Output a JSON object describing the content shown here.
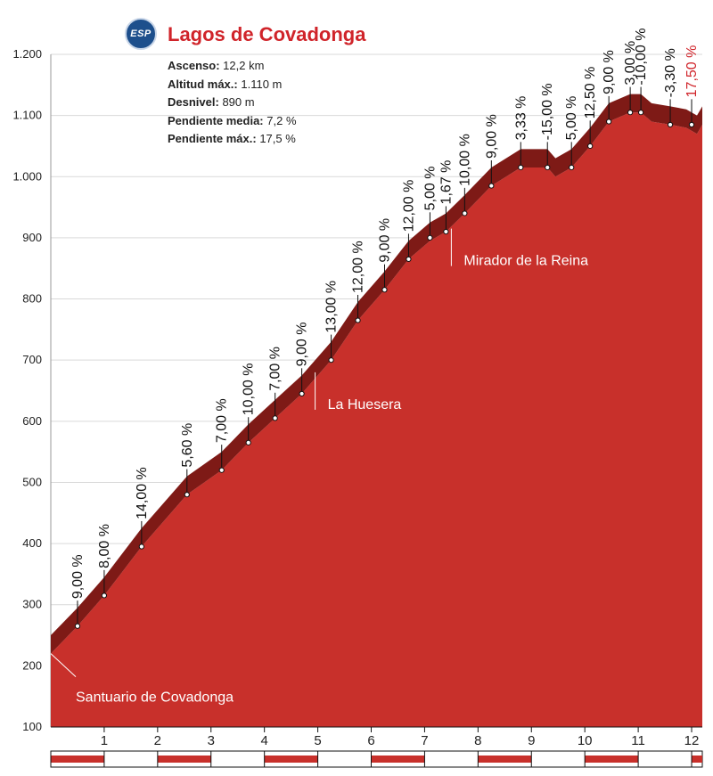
{
  "header": {
    "logo_text": "ESP",
    "title": "Lagos de Covadonga",
    "stats": [
      {
        "label": "Ascenso:",
        "value": "12,2 km"
      },
      {
        "label": "Altitud máx.:",
        "value": "1.110 m"
      },
      {
        "label": "Desnivel:",
        "value": "890 m"
      },
      {
        "label": "Pendiente media:",
        "value": "7,2 %"
      },
      {
        "label": "Pendiente máx.:",
        "value": "17,5 %"
      }
    ]
  },
  "colors": {
    "fill": "#c8302b",
    "band": "#7e1a16",
    "grid": "#d9d9d9",
    "highlight_text": "#d0242a"
  },
  "chart_data": {
    "type": "area",
    "xlim": [
      0,
      12.2
    ],
    "ylim": [
      100,
      1200
    ],
    "x_ticks": [
      1,
      2,
      3,
      4,
      5,
      6,
      7,
      8,
      9,
      10,
      11,
      12
    ],
    "x_tick_labels": [
      "1",
      "2",
      "3",
      "4",
      "5",
      "6",
      "7",
      "8",
      "9",
      "10",
      "11",
      "12"
    ],
    "y_ticks": [
      100,
      200,
      300,
      400,
      500,
      600,
      700,
      800,
      900,
      1000,
      1100,
      1200
    ],
    "y_tick_labels": [
      "100",
      "200",
      "300",
      "400",
      "500",
      "600",
      "700",
      "800",
      "900",
      "1.000",
      "1.100",
      "1.200"
    ],
    "profile": [
      {
        "x": 0.0,
        "y": 220
      },
      {
        "x": 0.5,
        "y": 265
      },
      {
        "x": 1.0,
        "y": 315
      },
      {
        "x": 1.7,
        "y": 395
      },
      {
        "x": 2.55,
        "y": 480
      },
      {
        "x": 3.2,
        "y": 520
      },
      {
        "x": 3.7,
        "y": 565
      },
      {
        "x": 4.2,
        "y": 605
      },
      {
        "x": 4.7,
        "y": 645
      },
      {
        "x": 5.25,
        "y": 700
      },
      {
        "x": 5.75,
        "y": 765
      },
      {
        "x": 6.25,
        "y": 815
      },
      {
        "x": 6.7,
        "y": 865
      },
      {
        "x": 7.1,
        "y": 895
      },
      {
        "x": 7.4,
        "y": 910
      },
      {
        "x": 7.75,
        "y": 940
      },
      {
        "x": 8.25,
        "y": 985
      },
      {
        "x": 8.8,
        "y": 1015
      },
      {
        "x": 9.3,
        "y": 1015
      },
      {
        "x": 9.45,
        "y": 1000
      },
      {
        "x": 9.75,
        "y": 1015
      },
      {
        "x": 10.1,
        "y": 1050
      },
      {
        "x": 10.45,
        "y": 1090
      },
      {
        "x": 10.85,
        "y": 1105
      },
      {
        "x": 11.05,
        "y": 1105
      },
      {
        "x": 11.25,
        "y": 1090
      },
      {
        "x": 11.6,
        "y": 1085
      },
      {
        "x": 11.9,
        "y": 1080
      },
      {
        "x": 12.1,
        "y": 1070
      },
      {
        "x": 12.2,
        "y": 1085
      }
    ],
    "band_thickness": 30,
    "gradients": [
      {
        "x": 0.5,
        "y": 265,
        "label": "9,00 %"
      },
      {
        "x": 1.0,
        "y": 315,
        "label": "8,00 %"
      },
      {
        "x": 1.7,
        "y": 395,
        "label": "14,00 %"
      },
      {
        "x": 2.55,
        "y": 480,
        "label": "5,60 %"
      },
      {
        "x": 3.2,
        "y": 520,
        "label": "7,00 %"
      },
      {
        "x": 3.7,
        "y": 565,
        "label": "10,00 %"
      },
      {
        "x": 4.2,
        "y": 605,
        "label": "7,00 %"
      },
      {
        "x": 4.7,
        "y": 645,
        "label": "9,00 %"
      },
      {
        "x": 5.25,
        "y": 700,
        "label": "13,00 %"
      },
      {
        "x": 5.75,
        "y": 765,
        "label": "12,00 %"
      },
      {
        "x": 6.25,
        "y": 815,
        "label": "9,00 %"
      },
      {
        "x": 6.7,
        "y": 865,
        "label": "12,00 %"
      },
      {
        "x": 7.1,
        "y": 900,
        "label": "5,00 %"
      },
      {
        "x": 7.4,
        "y": 910,
        "label": "1,67 %"
      },
      {
        "x": 7.75,
        "y": 940,
        "label": "10,00 %"
      },
      {
        "x": 8.25,
        "y": 985,
        "label": "9,00 %"
      },
      {
        "x": 8.8,
        "y": 1015,
        "label": "3,33 %"
      },
      {
        "x": 9.3,
        "y": 1015,
        "label": "-15,00 %"
      },
      {
        "x": 9.75,
        "y": 1015,
        "label": "5,00 %"
      },
      {
        "x": 10.1,
        "y": 1050,
        "label": "12,50 %"
      },
      {
        "x": 10.45,
        "y": 1090,
        "label": "9,00 %"
      },
      {
        "x": 10.85,
        "y": 1105,
        "label": "3,00 %"
      },
      {
        "x": 11.05,
        "y": 1105,
        "label": "-10,00 %"
      },
      {
        "x": 11.6,
        "y": 1085,
        "label": "-3,30 %"
      },
      {
        "x": 12.0,
        "y": 1085,
        "label": "17,50 %",
        "highlight": true
      }
    ],
    "landmarks": [
      {
        "x": 0.0,
        "y": 220,
        "label": "Santuario de Covadonga"
      },
      {
        "x": 4.95,
        "y": 680,
        "label": "La Huesera"
      },
      {
        "x": 7.5,
        "y": 915,
        "label": "Mirador de la Reina"
      }
    ]
  }
}
